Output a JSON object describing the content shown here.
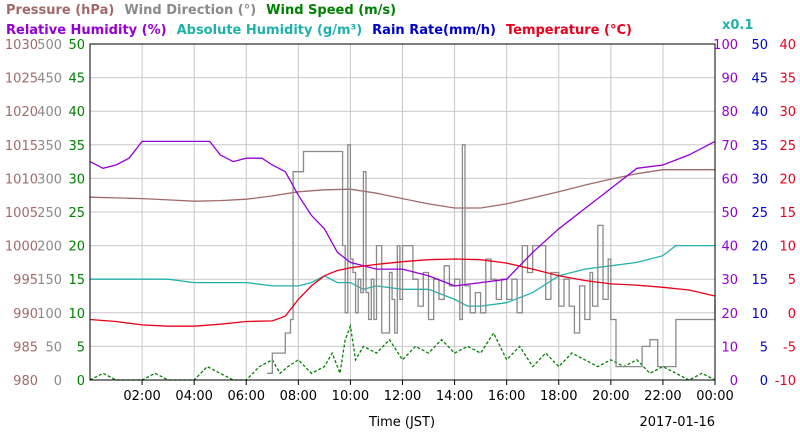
{
  "chart_data": {
    "type": "line",
    "date": "2017-01-16",
    "xlabel": "Time (JST)",
    "x_ticks": [
      "02:00",
      "04:00",
      "06:00",
      "08:00",
      "10:00",
      "12:00",
      "14:00",
      "16:00",
      "18:00",
      "20:00",
      "22:00",
      "00:00"
    ],
    "x_range_hours": [
      0,
      24
    ],
    "grid": true,
    "legend_line1": [
      {
        "text": "Pressure (hPa)",
        "color": "#a06a6a"
      },
      {
        "text": "Wind Direction (°)",
        "color": "#8a8a8a"
      },
      {
        "text": "Wind Speed (m/s)",
        "color": "#008000"
      }
    ],
    "legend_line2": [
      {
        "text": "Relative Humidity (%)",
        "color": "#9400d3"
      },
      {
        "text": "Absolute Humidity (g/m³)",
        "color": "#20b2aa"
      },
      {
        "text": "Rain Rate(mm/h)",
        "color": "#0000cd"
      },
      {
        "text": "Temperature (°C)",
        "color": "#e8001c"
      }
    ],
    "x01_label": {
      "text": "x0.1",
      "color": "#20b2aa"
    },
    "axes": [
      {
        "name": "pressure",
        "color": "#a06a6a",
        "ticks": [
          "980",
          "985",
          "990",
          "995",
          "1000",
          "1005",
          "1010",
          "1015",
          "1020",
          "1025",
          "1030"
        ],
        "range": [
          980,
          1030
        ]
      },
      {
        "name": "wind_direction",
        "color": "#8a8a8a",
        "ticks": [
          "0",
          "50",
          "100",
          "150",
          "200",
          "250",
          "300",
          "350",
          "400",
          "450",
          "500"
        ],
        "range": [
          0,
          500
        ]
      },
      {
        "name": "wind_speed",
        "color": "#008000",
        "ticks": [
          "0",
          "5",
          "10",
          "15",
          "20",
          "25",
          "30",
          "35",
          "40",
          "45",
          "50"
        ],
        "range": [
          0,
          50
        ]
      },
      {
        "name": "humidity",
        "color": "#9400d3",
        "ticks": [
          "0",
          "10",
          "20",
          "30",
          "40",
          "50",
          "60",
          "70",
          "80",
          "90",
          "100"
        ],
        "range": [
          0,
          100
        ]
      },
      {
        "name": "rain_rate",
        "color": "#0000cd",
        "ticks": [
          "0",
          "5",
          "10",
          "15",
          "20",
          "25",
          "30",
          "35",
          "40",
          "45",
          "50"
        ],
        "range": [
          0,
          50
        ]
      },
      {
        "name": "temperature",
        "color": "#e8001c",
        "ticks": [
          "-10",
          "-5",
          "0",
          "5",
          "10",
          "15",
          "20",
          "25",
          "30",
          "35",
          "40"
        ],
        "range": [
          -10,
          40
        ]
      }
    ],
    "series": [
      {
        "name": "Pressure (hPa)",
        "axis": "pressure",
        "color": "#a06a6a",
        "style": "solid",
        "x": [
          0,
          1,
          2,
          3,
          4,
          5,
          6,
          7,
          8,
          9,
          10,
          11,
          12,
          13,
          14,
          15,
          16,
          17,
          18,
          19,
          20,
          21,
          22,
          23,
          24
        ],
        "y": [
          1007.2,
          1007.1,
          1007.0,
          1006.8,
          1006.6,
          1006.7,
          1006.9,
          1007.4,
          1008.0,
          1008.3,
          1008.4,
          1007.8,
          1007.0,
          1006.2,
          1005.6,
          1005.6,
          1006.2,
          1007.1,
          1008.0,
          1009.0,
          1009.9,
          1010.7,
          1011.3,
          1011.3,
          1011.3
        ]
      },
      {
        "name": "Relative Humidity (%)",
        "axis": "humidity",
        "color": "#9400d3",
        "style": "solid",
        "x": [
          0,
          0.5,
          1,
          1.5,
          2,
          3,
          4,
          4.6,
          5,
          5.5,
          6,
          6.6,
          7,
          7.5,
          8,
          8.5,
          9,
          9.5,
          10,
          11,
          12,
          13,
          14,
          15,
          16,
          17,
          18,
          19,
          20,
          21,
          22,
          23,
          24
        ],
        "y": [
          65,
          63,
          64,
          66,
          71,
          71,
          71,
          71,
          67,
          65,
          66,
          66,
          64,
          62,
          55,
          49,
          45,
          38,
          35,
          33,
          33,
          31,
          28,
          29,
          30,
          38,
          45,
          51,
          57,
          63,
          64,
          67,
          71
        ]
      },
      {
        "name": "Absolute Humidity (g/m³)",
        "axis": "humidity",
        "color": "#20b2aa",
        "style": "solid",
        "x": [
          0,
          1,
          2,
          3,
          4,
          5,
          6,
          7,
          8,
          8.5,
          9,
          9.5,
          10,
          10.5,
          11,
          12,
          13,
          14,
          14.5,
          15,
          16,
          17,
          18,
          19,
          20,
          21,
          22,
          22.5,
          23,
          24
        ],
        "y": [
          30,
          30,
          30,
          30,
          29,
          29,
          29,
          28,
          28,
          29,
          31,
          29,
          29,
          27,
          28,
          27,
          27,
          24,
          22,
          22,
          23,
          26,
          31,
          33,
          34,
          35,
          37,
          40,
          40,
          40
        ]
      },
      {
        "name": "Temperature (°C)",
        "axis": "temperature",
        "color": "#e8001c",
        "style": "solid",
        "x": [
          0,
          1,
          2,
          3,
          4,
          5,
          6,
          7,
          7.5,
          8,
          8.5,
          9,
          9.5,
          10,
          11,
          12,
          13,
          14,
          15,
          16,
          17,
          18,
          19,
          20,
          21,
          22,
          23,
          24
        ],
        "y": [
          -1.0,
          -1.3,
          -1.8,
          -2.0,
          -2.0,
          -1.7,
          -1.3,
          -1.2,
          -0.5,
          2,
          4,
          5.5,
          6.3,
          6.7,
          7.2,
          7.6,
          7.9,
          8.0,
          7.9,
          7.4,
          6.5,
          5.5,
          4.8,
          4.3,
          4.1,
          3.8,
          3.4,
          2.5
        ]
      },
      {
        "name": "Wind Direction (°)",
        "axis": "wind_direction",
        "color": "#8a8a8a",
        "style": "step",
        "x": [
          0,
          6.6,
          6.8,
          7.0,
          7.2,
          7.5,
          7.6,
          7.7,
          7.8,
          8.2,
          8.25,
          9.6,
          9.7,
          9.8,
          9.9,
          10.0,
          10.1,
          10.2,
          10.3,
          10.4,
          10.5,
          10.6,
          10.7,
          10.8,
          10.9,
          11.0,
          11.2,
          11.5,
          11.6,
          11.7,
          11.8,
          11.9,
          12.0,
          12.2,
          12.4,
          12.6,
          12.8,
          13.0,
          13.2,
          13.4,
          13.6,
          13.8,
          14.0,
          14.2,
          14.3,
          14.4,
          14.6,
          14.8,
          15.0,
          15.2,
          15.4,
          15.6,
          15.8,
          16.0,
          16.2,
          16.4,
          16.6,
          16.8,
          17.0,
          17.2,
          17.5,
          17.7,
          17.9,
          18.0,
          18.2,
          18.4,
          18.6,
          18.8,
          19.0,
          19.2,
          19.3,
          19.5,
          19.7,
          19.9,
          20.0,
          20.2,
          20.5,
          20.8,
          21.0,
          21.2,
          21.5,
          21.8,
          22.0,
          22.5,
          23.0,
          24
        ],
        "y": [
          null,
          null,
          10,
          40,
          40,
          70,
          70,
          90,
          310,
          340,
          340,
          340,
          200,
          100,
          350,
          180,
          160,
          100,
          150,
          130,
          310,
          130,
          90,
          150,
          90,
          200,
          70,
          160,
          120,
          70,
          200,
          120,
          200,
          200,
          150,
          110,
          160,
          90,
          150,
          120,
          170,
          140,
          150,
          90,
          350,
          140,
          100,
          130,
          100,
          180,
          150,
          120,
          150,
          120,
          150,
          100,
          200,
          160,
          200,
          200,
          120,
          160,
          160,
          110,
          150,
          110,
          70,
          140,
          90,
          160,
          110,
          230,
          120,
          180,
          90,
          20,
          20,
          20,
          20,
          50,
          60,
          20,
          20,
          90,
          90,
          120
        ]
      },
      {
        "name": "Wind Speed (m/s)",
        "axis": "wind_speed",
        "color": "#008000",
        "style": "dashed",
        "x": [
          0,
          0.5,
          1,
          1.5,
          2,
          2.5,
          3,
          3.5,
          4,
          4.5,
          5,
          5.5,
          6,
          6.5,
          7,
          7.3,
          7.6,
          8,
          8.5,
          9,
          9.3,
          9.6,
          9.8,
          10,
          10.2,
          10.5,
          11,
          11.5,
          12,
          12.5,
          13,
          13.5,
          14,
          14.5,
          15,
          15.5,
          16,
          16.5,
          17,
          17.5,
          18,
          18.5,
          19,
          19.5,
          20,
          20.5,
          21,
          21.5,
          22,
          22.5,
          23,
          23.5,
          24
        ],
        "y": [
          0,
          1,
          0,
          0,
          0,
          1,
          0,
          0,
          0,
          2,
          1,
          0,
          0,
          2,
          3,
          1,
          2,
          3,
          1,
          2,
          4,
          1,
          6,
          8,
          3,
          5,
          4,
          6,
          3,
          5,
          4,
          6,
          4,
          5,
          4,
          7,
          3,
          5,
          2,
          4,
          2,
          4,
          3,
          2,
          3,
          2,
          3,
          1,
          2,
          1,
          0,
          1,
          0
        ]
      }
    ]
  }
}
